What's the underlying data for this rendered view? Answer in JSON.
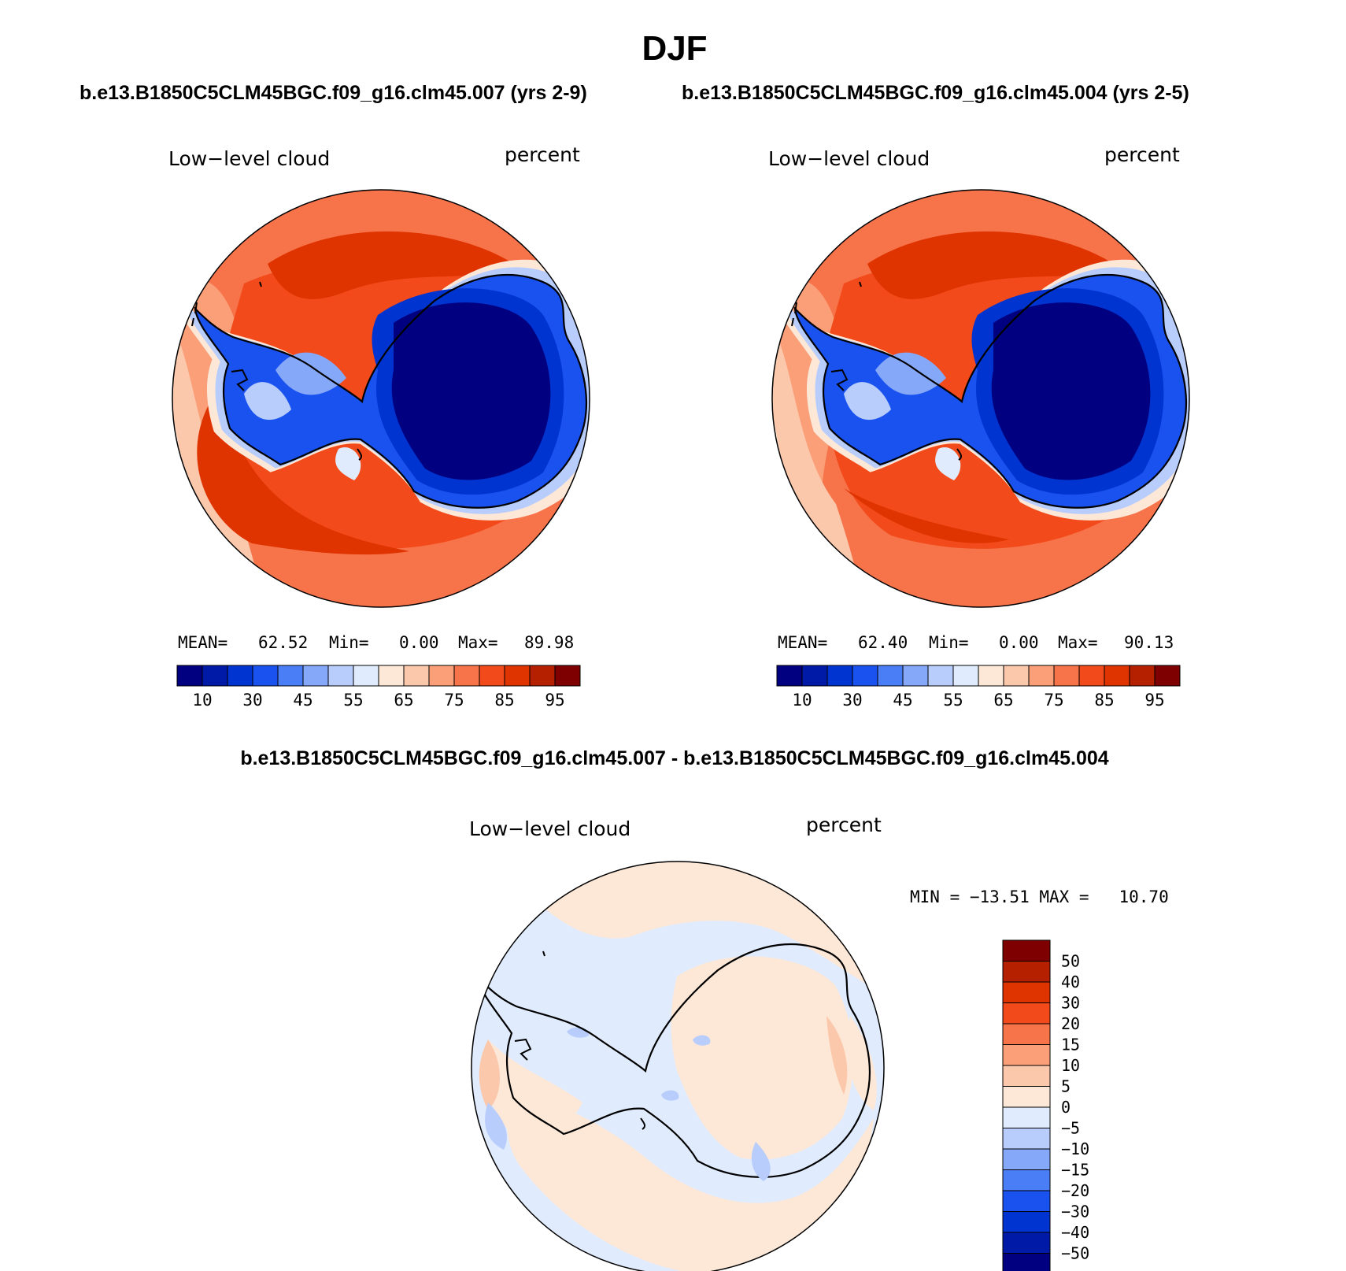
{
  "season_title": "DJF",
  "panels": [
    {
      "case_title": "b.e13.B1850C5CLM45BGC.f09_g16.clm45.007 (yrs 2-9)",
      "variable": "Low−level cloud",
      "units": "percent",
      "stats": {
        "mean_label": "MEAN=",
        "mean": "62.52",
        "min_label": "Min=",
        "min": "0.00",
        "max_label": "Max=",
        "max": "89.98"
      }
    },
    {
      "case_title": "b.e13.B1850C5CLM45BGC.f09_g16.clm45.004 (yrs 2-5)",
      "variable": "Low−level cloud",
      "units": "percent",
      "stats": {
        "mean_label": "MEAN=",
        "mean": "62.40",
        "min_label": "Min=",
        "min": "0.00",
        "max_label": "Max=",
        "max": "90.13"
      }
    }
  ],
  "diff_panel": {
    "case_title": "b.e13.B1850C5CLM45BGC.f09_g16.clm45.007 - b.e13.B1850C5CLM45BGC.f09_g16.clm45.004",
    "variable": "Low−level cloud",
    "units": "percent",
    "minmax_text": "MIN = −13.51 MAX =   10.70"
  },
  "colorbar_main": {
    "colors": [
      "#000080",
      "#001aa8",
      "#0034d0",
      "#1a52f0",
      "#4a7ef6",
      "#86a8f8",
      "#b8cdfb",
      "#e0ebfd",
      "#fde8d8",
      "#fcc8ac",
      "#fa9f78",
      "#f7734a",
      "#f24a1a",
      "#df3300",
      "#b52000",
      "#7f0000"
    ],
    "labels": [
      "10",
      "30",
      "45",
      "55",
      "65",
      "75",
      "85",
      "95"
    ]
  },
  "colorbar_diff": {
    "colors_top_to_bottom": [
      "#7f0000",
      "#b52000",
      "#df3300",
      "#f24a1a",
      "#f7734a",
      "#fa9f78",
      "#fcc8ac",
      "#fde8d8",
      "#e0ebfd",
      "#b8cdfb",
      "#86a8f8",
      "#4a7ef6",
      "#1a52f0",
      "#0034d0",
      "#001aa8",
      "#000080"
    ],
    "labels_top_to_bottom": [
      "50",
      "40",
      "30",
      "20",
      "15",
      "10",
      "5",
      "0",
      "−5",
      "−10",
      "−15",
      "−20",
      "−30",
      "−40",
      "−50"
    ]
  }
}
